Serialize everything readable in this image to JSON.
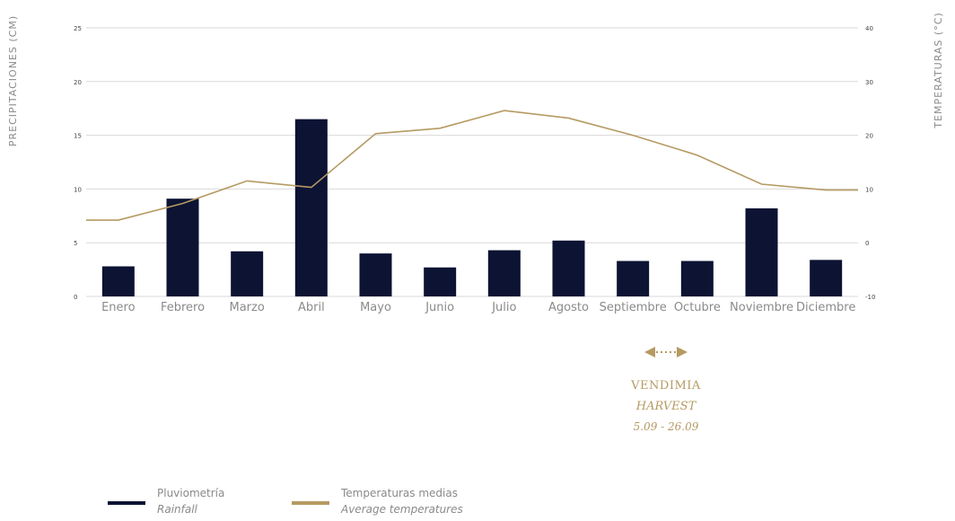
{
  "chart_data": {
    "type": "bar",
    "categories": [
      "Enero",
      "Febrero",
      "Marzo",
      "Abril",
      "Mayo",
      "Junio",
      "Julio",
      "Agosto",
      "Septiembre",
      "Octubre",
      "Noviembre",
      "Diciembre"
    ],
    "series": [
      {
        "name": "Pluviometría",
        "axis": "left",
        "type": "bar",
        "values": [
          2.8,
          9.1,
          4.2,
          16.5,
          4.0,
          2.7,
          4.3,
          5.2,
          3.3,
          3.3,
          8.2,
          3.4
        ]
      },
      {
        "name": "Temperaturas medias",
        "axis": "right",
        "type": "line",
        "values": [
          4.2,
          7.3,
          11.5,
          10.3,
          20.3,
          21.3,
          24.6,
          23.2,
          20.0,
          16.3,
          10.9,
          9.8
        ]
      }
    ],
    "ylabel": "PRECIPITACIONES (CM)",
    "y2label": "TEMPERATURAS (°C)",
    "ylim": [
      0,
      25
    ],
    "yticks": [
      0,
      5,
      10,
      15,
      20,
      25
    ],
    "y2lim": [
      -10,
      40
    ],
    "y2ticks": [
      -10,
      0,
      10,
      20,
      30,
      40
    ],
    "grid": true,
    "colors": {
      "bar": "#0c1333",
      "line": "#b59a62",
      "grid": "#d9d9d9",
      "accent": "#b59a62"
    }
  },
  "harvest": {
    "arrow_icon": "double-arrow-icon",
    "line1": "VENDIMIA",
    "line2": "HARVEST",
    "line3": "5.09 - 26.09"
  },
  "legend": [
    {
      "label": "Pluviometría",
      "sublabel": "Rainfall",
      "color": "#0c1333"
    },
    {
      "label": "Temperaturas medias",
      "sublabel": "Average temperatures",
      "color": "#b59a62"
    }
  ]
}
